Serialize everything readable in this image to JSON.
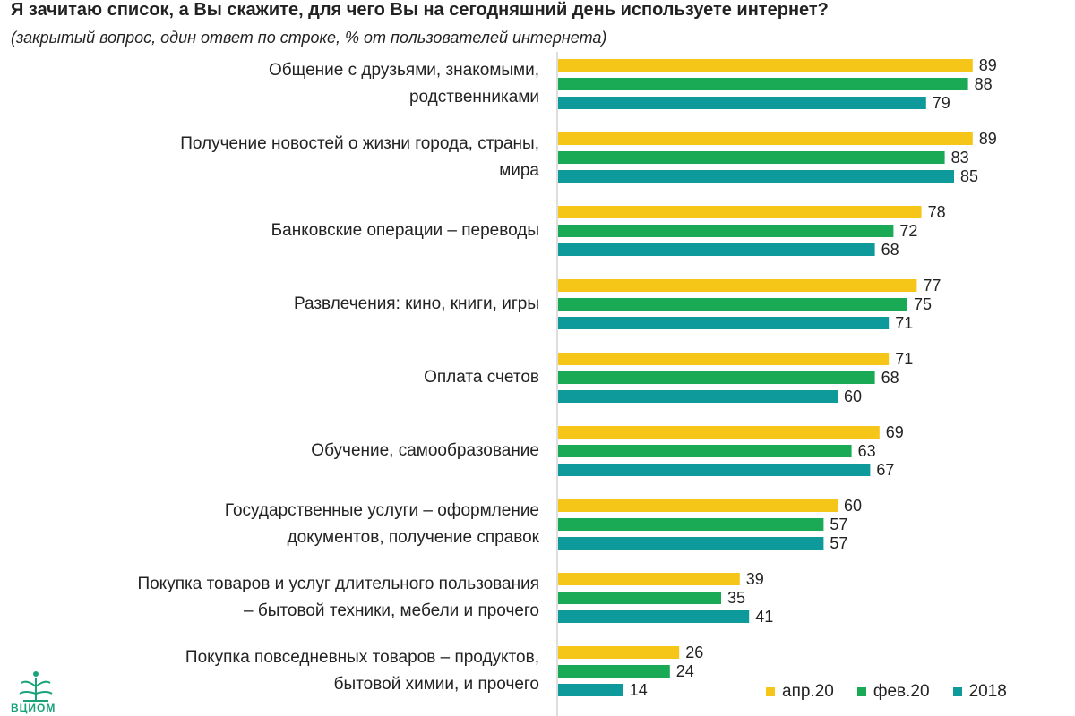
{
  "header": {
    "title": "Я зачитаю список, а Вы скажите, для чего Вы на сегодняшний день используете интернет?",
    "subtitle": "(закрытый вопрос, один ответ по строке, % от пользователей интернета)"
  },
  "logo": {
    "text": "ВЦИОМ"
  },
  "colors": {
    "apr20": "#f5c518",
    "feb20": "#1aaa55",
    "y2018": "#0e9a9a"
  },
  "chart_data": {
    "type": "bar",
    "orientation": "horizontal",
    "title": "Я зачитаю список, а Вы скажите, для чего Вы на сегодняшний день используете интернет?",
    "xlabel": "",
    "ylabel": "",
    "xlim": [
      0,
      100
    ],
    "grid": false,
    "legend_position": "bottom-right",
    "categories": [
      [
        "Общение с друзьями, знакомыми,",
        "родственниками"
      ],
      [
        "Получение новостей о жизни города, страны,",
        "мира"
      ],
      [
        "Банковские операции – переводы"
      ],
      [
        "Развлечения: кино, книги, игры"
      ],
      [
        "Оплата счетов"
      ],
      [
        "Обучение, самообразование"
      ],
      [
        "Государственные услуги – оформление",
        "документов, получение справок"
      ],
      [
        "Покупка товаров и услуг длительного пользования",
        "– бытовой техники, мебели и прочего"
      ],
      [
        "Покупка повседневных товаров – продуктов,",
        "бытовой химии, и прочего"
      ]
    ],
    "series": [
      {
        "name": "апр.20",
        "color": "#f5c518",
        "values": [
          89,
          89,
          78,
          77,
          71,
          69,
          60,
          39,
          26
        ]
      },
      {
        "name": "фев.20",
        "color": "#1aaa55",
        "values": [
          88,
          83,
          72,
          75,
          68,
          63,
          57,
          35,
          24
        ]
      },
      {
        "name": "2018",
        "color": "#0e9a9a",
        "values": [
          79,
          85,
          68,
          71,
          60,
          67,
          57,
          41,
          14
        ]
      }
    ]
  }
}
